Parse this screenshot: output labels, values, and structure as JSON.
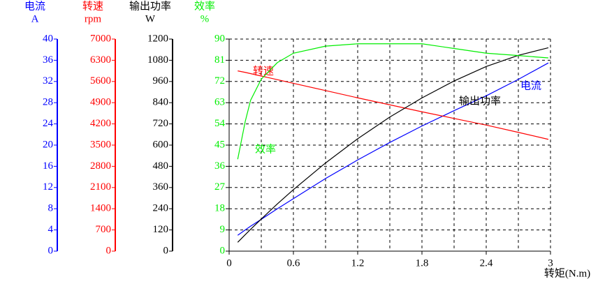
{
  "chart_data": {
    "type": "line",
    "x_label": "转矩(N.m)",
    "xlim": [
      0,
      3
    ],
    "xticks": [
      0,
      0.6,
      1.2,
      1.8,
      2.4,
      3
    ],
    "grid": true,
    "x": [
      0.08,
      0.15,
      0.2,
      0.3,
      0.45,
      0.6,
      0.9,
      1.2,
      1.5,
      1.8,
      2.1,
      2.4,
      2.7,
      2.98
    ],
    "series": [
      {
        "name": "电流",
        "unit": "A",
        "color": "#0000ff",
        "ylim": [
          0,
          40
        ],
        "yticks": [
          0,
          4,
          8,
          12,
          16,
          20,
          24,
          28,
          32,
          36,
          40
        ],
        "values": [
          3.0,
          4.0,
          4.7,
          6.0,
          8.0,
          9.9,
          13.7,
          17.2,
          20.5,
          23.6,
          26.5,
          29.3,
          32.4,
          35.5
        ]
      },
      {
        "name": "转速",
        "unit": "rpm",
        "color": "#ff0000",
        "ylim": [
          0,
          7000
        ],
        "yticks": [
          0,
          700,
          1400,
          2100,
          2800,
          3500,
          4200,
          4900,
          5600,
          6300,
          7000
        ],
        "values": [
          5950,
          5900,
          5860,
          5780,
          5660,
          5540,
          5300,
          5060,
          4830,
          4600,
          4380,
          4160,
          3920,
          3690
        ]
      },
      {
        "name": "输出功率",
        "unit": "W",
        "color": "#000000",
        "ylim": [
          0,
          1200
        ],
        "yticks": [
          0,
          120,
          240,
          360,
          480,
          600,
          720,
          840,
          960,
          1080,
          1200
        ],
        "values": [
          50,
          93,
          123,
          182,
          267,
          348,
          499,
          636,
          759,
          867,
          963,
          1045,
          1108,
          1151
        ]
      },
      {
        "name": "效率",
        "unit": "%",
        "color": "#00ee00",
        "ylim": [
          0,
          90
        ],
        "yticks": [
          0,
          9,
          18,
          27,
          36,
          45,
          54,
          63,
          72,
          81,
          90
        ],
        "values": [
          39,
          55,
          64,
          73,
          80,
          84,
          87,
          88,
          88,
          88,
          86,
          84,
          83,
          82
        ]
      }
    ]
  }
}
